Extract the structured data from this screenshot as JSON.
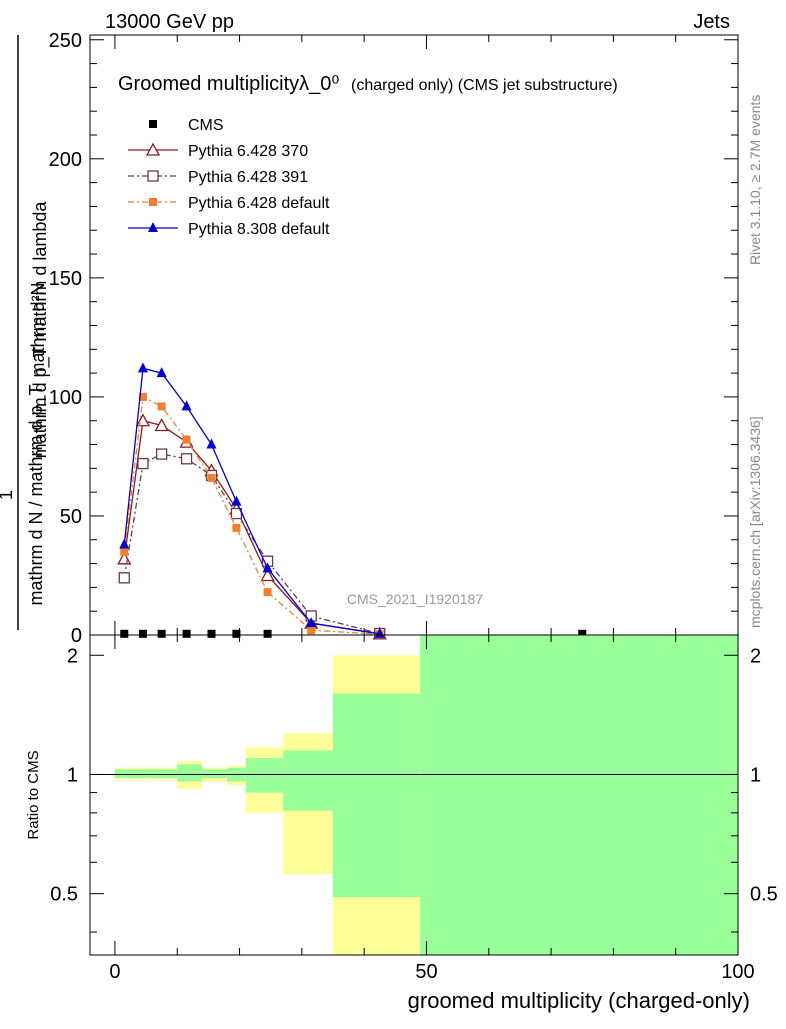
{
  "header": {
    "left_label": "13000 GeV pp",
    "right_label": "Jets"
  },
  "side_labels": {
    "rivet": "Rivet 3.1.10, ≥ 2.7M events",
    "mcplots": "mcplots.cern.ch [arXiv:1306.3436]"
  },
  "watermark": "CMS_2021_I1920187",
  "colors": {
    "cms": "#000000",
    "py6_370": "#8b1a1a",
    "py6_391": "#6b3a4a",
    "py6_default": "#f08030",
    "py8_default": "#0000cc",
    "band_stat": "#99ff99",
    "band_total": "#ffff99"
  },
  "chart_data": [
    {
      "type": "line",
      "title": "Groomed multiplicityλ_0⁰",
      "title_suffix": "(charged only) (CMS jet substructure)",
      "ylabel_numerator": "mathrm d²N",
      "ylabel_denominator": "mathrm d p_T mathrm d lambda",
      "ylabel_factor_numerator": "1",
      "ylabel_factor_denominator": "mathrm d N / mathrm d p_T",
      "xlim": [
        -4,
        100
      ],
      "ylim": [
        0,
        252
      ],
      "y_ticks": [
        0,
        50,
        100,
        150,
        200,
        250
      ],
      "legend_position": "top-left",
      "x": [
        1.5,
        4.5,
        7.5,
        11.5,
        15.5,
        19.5,
        24.5,
        31.5,
        42.5,
        75
      ],
      "series": [
        {
          "name": "CMS",
          "marker": "square",
          "values": [
            0.5,
            0.5,
            0.5,
            0.5,
            0.5,
            0.5,
            0.5,
            null,
            null,
            0.5
          ]
        },
        {
          "name": "Pythia 6.428 370",
          "marker": "triangle-open",
          "values": [
            32,
            90,
            88,
            81,
            69,
            53,
            25,
            5,
            0.5,
            null
          ]
        },
        {
          "name": "Pythia 6.428 391",
          "marker": "square-open",
          "values": [
            24,
            72,
            76,
            74,
            67,
            51,
            31,
            8,
            0.6,
            null
          ]
        },
        {
          "name": "Pythia 6.428 default",
          "marker": "square",
          "values": [
            35,
            100,
            96,
            82,
            66,
            45,
            18,
            2,
            0.3,
            null
          ]
        },
        {
          "name": "Pythia 8.308 default",
          "marker": "triangle",
          "values": [
            38,
            112,
            110,
            96,
            80,
            56,
            28,
            5,
            0.5,
            null
          ]
        }
      ]
    },
    {
      "type": "area",
      "ylabel": "Ratio to CMS",
      "xlabel": "groomed multiplicity (charged-only)",
      "xlim": [
        -4,
        100
      ],
      "ylim": [
        0.35,
        2.25
      ],
      "y_ticks": [
        0.5,
        1,
        2
      ],
      "x_ticks": [
        0,
        50,
        100
      ],
      "reference_line": 1,
      "bins": [
        {
          "x0": 0,
          "x1": 5,
          "stat": [
            0.98,
            1.03
          ],
          "total": [
            0.97,
            1.04
          ]
        },
        {
          "x0": 5,
          "x1": 10,
          "stat": [
            0.98,
            1.03
          ],
          "total": [
            0.97,
            1.04
          ]
        },
        {
          "x0": 10,
          "x1": 14,
          "stat": [
            0.96,
            1.06
          ],
          "total": [
            0.92,
            1.08
          ]
        },
        {
          "x0": 14,
          "x1": 18,
          "stat": [
            0.98,
            1.03
          ],
          "total": [
            0.96,
            1.04
          ]
        },
        {
          "x0": 18,
          "x1": 21,
          "stat": [
            0.96,
            1.04
          ],
          "total": [
            0.94,
            1.05
          ]
        },
        {
          "x0": 21,
          "x1": 27,
          "stat": [
            0.9,
            1.1
          ],
          "total": [
            0.8,
            1.17
          ]
        },
        {
          "x0": 27,
          "x1": 35,
          "stat": [
            0.81,
            1.15
          ],
          "total": [
            0.56,
            1.27
          ]
        },
        {
          "x0": 35,
          "x1": 49,
          "stat": [
            0.49,
            1.6
          ],
          "total": [
            0.35,
            2.0
          ]
        },
        {
          "x0": 49,
          "x1": 100,
          "stat": [
            0.35,
            2.25
          ],
          "total": [
            0.35,
            2.25
          ]
        }
      ]
    }
  ]
}
